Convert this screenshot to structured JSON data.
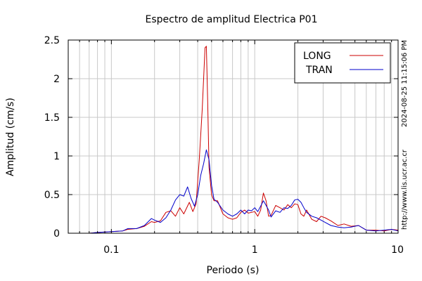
{
  "chart_data": {
    "type": "line",
    "title": "Espectro de amplitud Electrica P01",
    "xlabel": "Periodo (s)",
    "ylabel": "Amplitud (cm/s)",
    "x_scale": "log",
    "xlim": [
      0.05,
      10
    ],
    "ylim": [
      0,
      2.5
    ],
    "grid": true,
    "legend_position": "top-right",
    "x_ticks": [
      {
        "value": 0.1,
        "label": "0.1"
      },
      {
        "value": 1,
        "label": "1"
      },
      {
        "value": 10,
        "label": "10"
      }
    ],
    "y_ticks": [
      {
        "value": 0,
        "label": "0"
      },
      {
        "value": 0.5,
        "label": "0.5"
      },
      {
        "value": 1,
        "label": "1"
      },
      {
        "value": 1.5,
        "label": "1.5"
      },
      {
        "value": 2,
        "label": "2"
      },
      {
        "value": 2.5,
        "label": "2.5"
      }
    ],
    "series": [
      {
        "name": "LONG",
        "color": "#cc0000",
        "x": [
          0.05,
          0.07,
          0.08,
          0.1,
          0.12,
          0.13,
          0.15,
          0.17,
          0.19,
          0.2,
          0.22,
          0.24,
          0.26,
          0.28,
          0.3,
          0.32,
          0.35,
          0.37,
          0.39,
          0.41,
          0.43,
          0.45,
          0.46,
          0.47,
          0.48,
          0.5,
          0.52,
          0.55,
          0.6,
          0.65,
          0.7,
          0.75,
          0.8,
          0.85,
          0.9,
          0.95,
          1.0,
          1.05,
          1.1,
          1.15,
          1.2,
          1.25,
          1.3,
          1.4,
          1.5,
          1.6,
          1.7,
          1.8,
          1.9,
          2.0,
          2.1,
          2.2,
          2.3,
          2.5,
          2.7,
          2.9,
          3.1,
          3.4,
          3.8,
          4.2,
          4.7,
          5.3,
          6.0,
          7.0,
          8.0,
          9.0,
          10.0
        ],
        "y": [
          0.0,
          0.0,
          0.01,
          0.02,
          0.03,
          0.05,
          0.06,
          0.09,
          0.15,
          0.14,
          0.16,
          0.27,
          0.29,
          0.22,
          0.33,
          0.25,
          0.4,
          0.28,
          0.38,
          0.95,
          1.6,
          2.4,
          2.42,
          1.7,
          0.85,
          0.5,
          0.42,
          0.42,
          0.25,
          0.2,
          0.18,
          0.2,
          0.27,
          0.3,
          0.26,
          0.27,
          0.28,
          0.22,
          0.3,
          0.52,
          0.42,
          0.22,
          0.23,
          0.36,
          0.33,
          0.3,
          0.37,
          0.33,
          0.38,
          0.37,
          0.25,
          0.22,
          0.3,
          0.18,
          0.15,
          0.22,
          0.2,
          0.16,
          0.1,
          0.12,
          0.09,
          0.1,
          0.04,
          0.04,
          0.03,
          0.05,
          0.04
        ]
      },
      {
        "name": "TRAN",
        "color": "#0000cc",
        "x": [
          0.05,
          0.07,
          0.08,
          0.1,
          0.12,
          0.13,
          0.15,
          0.17,
          0.19,
          0.2,
          0.22,
          0.24,
          0.26,
          0.28,
          0.3,
          0.32,
          0.34,
          0.36,
          0.38,
          0.4,
          0.42,
          0.44,
          0.46,
          0.48,
          0.5,
          0.52,
          0.55,
          0.6,
          0.65,
          0.7,
          0.75,
          0.8,
          0.85,
          0.9,
          0.95,
          1.0,
          1.05,
          1.1,
          1.15,
          1.2,
          1.25,
          1.3,
          1.4,
          1.5,
          1.6,
          1.7,
          1.8,
          1.9,
          2.0,
          2.1,
          2.2,
          2.3,
          2.5,
          2.7,
          2.9,
          3.1,
          3.4,
          3.8,
          4.2,
          4.7,
          5.3,
          6.0,
          7.0,
          8.0,
          9.0,
          10.0
        ],
        "y": [
          0.0,
          0.0,
          0.01,
          0.02,
          0.03,
          0.06,
          0.06,
          0.1,
          0.19,
          0.17,
          0.14,
          0.2,
          0.3,
          0.43,
          0.5,
          0.48,
          0.6,
          0.45,
          0.35,
          0.5,
          0.75,
          0.9,
          1.08,
          0.95,
          0.62,
          0.44,
          0.4,
          0.3,
          0.25,
          0.22,
          0.25,
          0.3,
          0.25,
          0.3,
          0.29,
          0.33,
          0.28,
          0.35,
          0.42,
          0.36,
          0.3,
          0.21,
          0.29,
          0.27,
          0.33,
          0.32,
          0.36,
          0.43,
          0.44,
          0.4,
          0.33,
          0.27,
          0.22,
          0.2,
          0.17,
          0.14,
          0.1,
          0.08,
          0.07,
          0.08,
          0.1,
          0.04,
          0.03,
          0.04,
          0.05,
          0.03
        ]
      }
    ]
  },
  "side_text": {
    "timestamp": "2024-08-25 11:15:06 PM",
    "url": "http://www.lis.ucr.ac.cr"
  },
  "colors": {
    "grid": "#c8c8c8",
    "axis": "#000000"
  }
}
